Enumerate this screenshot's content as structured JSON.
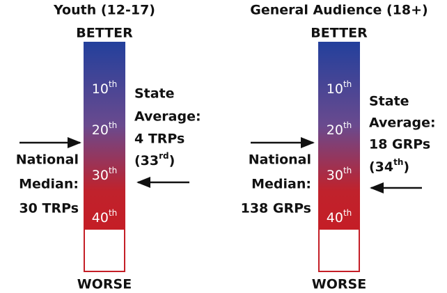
{
  "panels": [
    {
      "title": "Youth (12-17)",
      "top_label": "BETTER",
      "bottom_label": "WORSE",
      "ranks": [
        {
          "number": "10",
          "suffix": "th"
        },
        {
          "number": "20",
          "suffix": "th"
        },
        {
          "number": "30",
          "suffix": "th"
        },
        {
          "number": "40",
          "suffix": "th"
        }
      ],
      "state_average": {
        "lines": [
          "State",
          "Average:",
          "4 TRPs"
        ],
        "rank": [
          "(33",
          "rd",
          ")"
        ]
      },
      "national_median": {
        "lines": [
          "National",
          "Median:",
          "30 TRPs"
        ]
      }
    },
    {
      "title": "General Audience (18+)",
      "top_label": "BETTER",
      "bottom_label": "WORSE",
      "ranks": [
        {
          "number": "10",
          "suffix": "th"
        },
        {
          "number": "20",
          "suffix": "th"
        },
        {
          "number": "30",
          "suffix": "th"
        },
        {
          "number": "40",
          "suffix": "th"
        }
      ],
      "state_average": {
        "lines": [
          "State",
          "Average:",
          "18 GRPs"
        ],
        "rank": [
          "(34",
          "th",
          ")"
        ]
      },
      "national_median": {
        "lines": [
          "National",
          "Median:",
          "138 GRPs"
        ]
      }
    }
  ]
}
